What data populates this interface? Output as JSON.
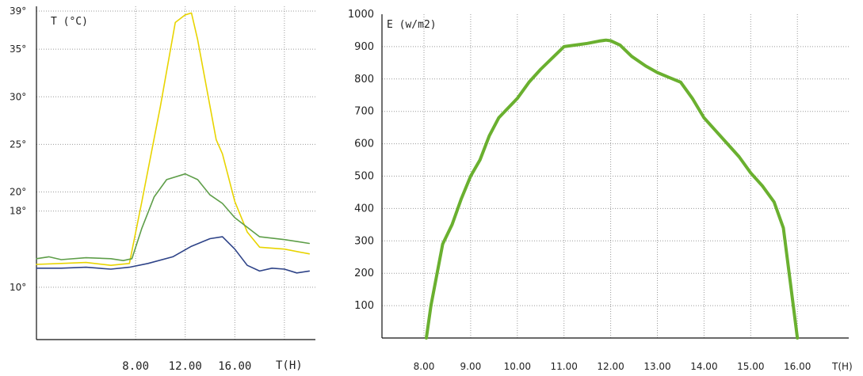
{
  "chart_data": [
    {
      "type": "line",
      "title": "",
      "ylabel": "T (°C)",
      "xlabel": "T(H)",
      "x_ticks": [
        8,
        12,
        16
      ],
      "x_tick_labels": [
        "8.00",
        "12.00",
        "16.00"
      ],
      "xlim": [
        0,
        22.5
      ],
      "y_ticks": [
        10,
        18,
        20,
        25,
        30,
        35,
        39
      ],
      "y_tick_labels": [
        "10°",
        "18°",
        "20°",
        "25°",
        "30°",
        "35°",
        "39°"
      ],
      "ylim": [
        4.5,
        39.5
      ],
      "grid": true,
      "series": [
        {
          "color": "#e8d400",
          "points": [
            [
              0,
              12.4
            ],
            [
              2,
              12.5
            ],
            [
              4,
              12.6
            ],
            [
              6,
              12.3
            ],
            [
              7.5,
              12.5
            ],
            [
              8.5,
              19
            ],
            [
              10,
              29
            ],
            [
              11.2,
              37.8
            ],
            [
              12,
              38.6
            ],
            [
              12.5,
              38.8
            ],
            [
              13,
              36
            ],
            [
              14,
              29
            ],
            [
              14.5,
              25.5
            ],
            [
              15,
              24
            ],
            [
              16,
              19
            ],
            [
              17,
              15.8
            ],
            [
              18,
              14.2
            ],
            [
              20,
              14
            ],
            [
              22,
              13.5
            ]
          ]
        },
        {
          "color": "#5e9e49",
          "points": [
            [
              0,
              13
            ],
            [
              1,
              13.2
            ],
            [
              2,
              12.9
            ],
            [
              4,
              13.1
            ],
            [
              6,
              13
            ],
            [
              7,
              12.8
            ],
            [
              7.7,
              13
            ],
            [
              8.5,
              16.2
            ],
            [
              9.5,
              19.5
            ],
            [
              10.5,
              21.3
            ],
            [
              12,
              21.9
            ],
            [
              13,
              21.3
            ],
            [
              14,
              19.7
            ],
            [
              15,
              18.8
            ],
            [
              16,
              17.3
            ],
            [
              17,
              16.3
            ],
            [
              18,
              15.3
            ],
            [
              20,
              15
            ],
            [
              22,
              14.6
            ]
          ]
        },
        {
          "color": "#2e4388",
          "points": [
            [
              0,
              12
            ],
            [
              2,
              12
            ],
            [
              4,
              12.1
            ],
            [
              6,
              11.9
            ],
            [
              7.5,
              12.1
            ],
            [
              9,
              12.5
            ],
            [
              11,
              13.2
            ],
            [
              12.5,
              14.3
            ],
            [
              14,
              15.1
            ],
            [
              15,
              15.3
            ],
            [
              16,
              14
            ],
            [
              17,
              12.3
            ],
            [
              18,
              11.7
            ],
            [
              19,
              12
            ],
            [
              20,
              11.9
            ],
            [
              21,
              11.5
            ],
            [
              22,
              11.7
            ]
          ]
        }
      ]
    },
    {
      "type": "line",
      "title": "",
      "ylabel": "E (w/m2)",
      "xlabel": "T(H)",
      "x_ticks": [
        8,
        9,
        10,
        11,
        12,
        13,
        14,
        15,
        16
      ],
      "x_tick_labels": [
        "8.00",
        "9.00",
        "10.00",
        "11.00",
        "12.00",
        "13.00",
        "14.00",
        "15.00",
        "16.00"
      ],
      "xlim": [
        7.1,
        17.1
      ],
      "y_ticks": [
        100,
        200,
        300,
        400,
        500,
        600,
        700,
        800,
        900,
        1000
      ],
      "y_tick_labels": [
        "100",
        "200",
        "300",
        "400",
        "500",
        "600",
        "700",
        "800",
        "900",
        "1000"
      ],
      "ylim": [
        0,
        1000
      ],
      "grid": true,
      "series": [
        {
          "color": "#6ab02f",
          "points": [
            [
              8.05,
              0
            ],
            [
              8.15,
              100
            ],
            [
              8.4,
              290
            ],
            [
              8.6,
              350
            ],
            [
              8.8,
              430
            ],
            [
              9,
              500
            ],
            [
              9.2,
              550
            ],
            [
              9.4,
              625
            ],
            [
              9.6,
              680
            ],
            [
              9.8,
              710
            ],
            [
              10,
              740
            ],
            [
              10.25,
              790
            ],
            [
              10.5,
              830
            ],
            [
              10.75,
              865
            ],
            [
              11,
              900
            ],
            [
              11.25,
              905
            ],
            [
              11.5,
              910
            ],
            [
              11.75,
              917
            ],
            [
              11.9,
              920
            ],
            [
              12,
              918
            ],
            [
              12.2,
              905
            ],
            [
              12.45,
              870
            ],
            [
              12.75,
              840
            ],
            [
              13,
              820
            ],
            [
              13.25,
              805
            ],
            [
              13.5,
              790
            ],
            [
              13.75,
              740
            ],
            [
              14,
              680
            ],
            [
              14.25,
              640
            ],
            [
              14.5,
              600
            ],
            [
              14.75,
              560
            ],
            [
              15,
              510
            ],
            [
              15.25,
              470
            ],
            [
              15.5,
              420
            ],
            [
              15.7,
              340
            ],
            [
              15.85,
              170
            ],
            [
              16,
              0
            ]
          ]
        }
      ]
    }
  ]
}
